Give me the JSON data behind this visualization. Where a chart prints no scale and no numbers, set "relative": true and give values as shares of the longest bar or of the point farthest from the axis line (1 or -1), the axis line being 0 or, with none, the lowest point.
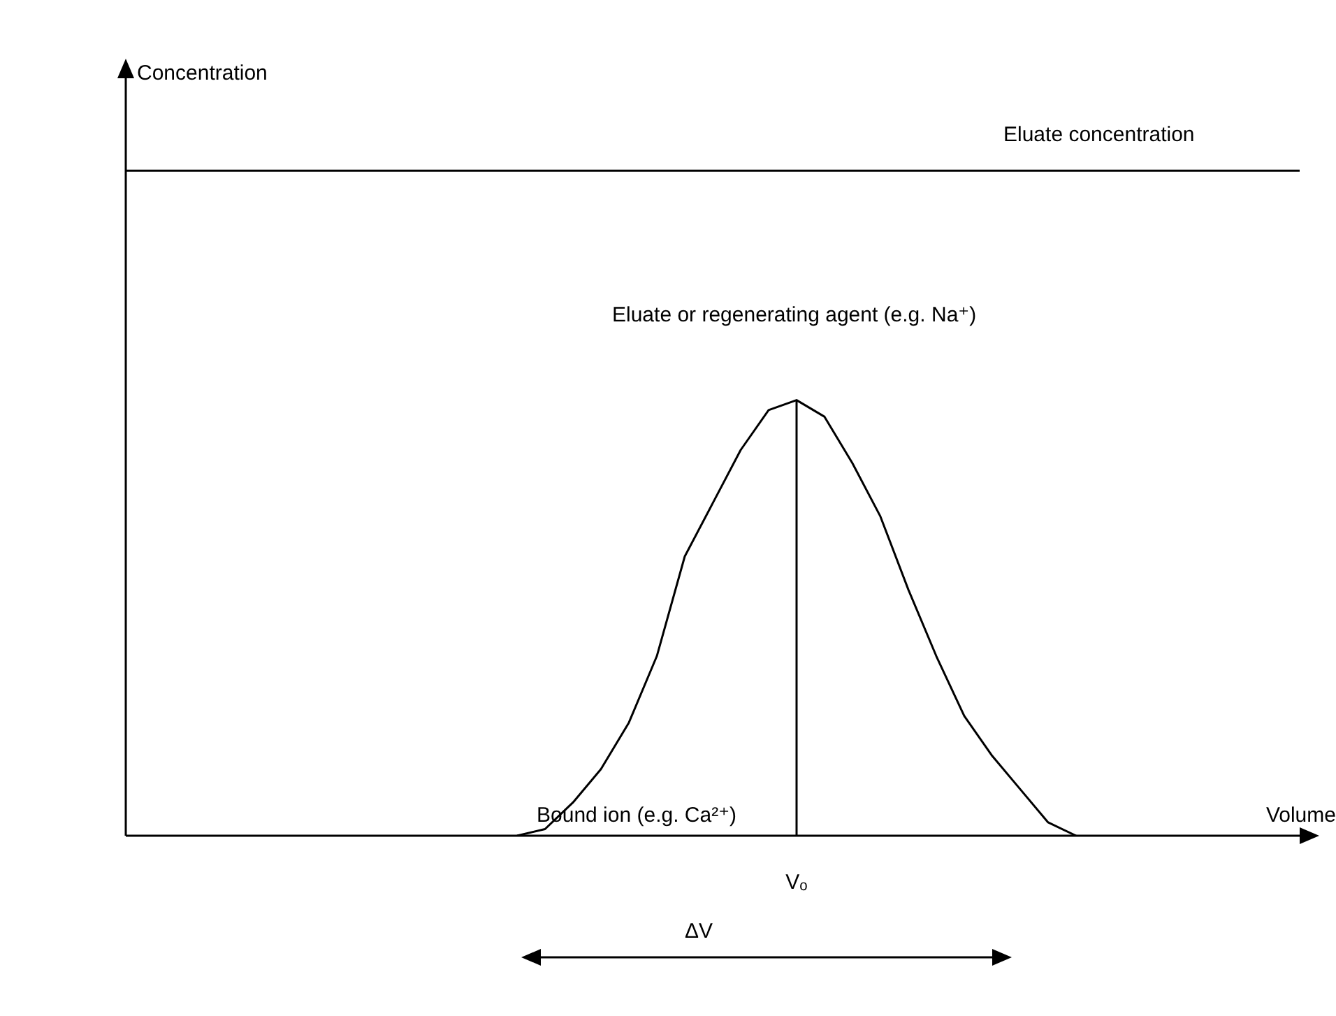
{
  "chart_data": {
    "type": "line",
    "relative": true,
    "xlabel": "Volume",
    "ylabel": "Concentration",
    "categories": [
      null,
      null,
      null,
      null,
      null,
      null,
      null,
      null,
      null,
      null,
      null,
      null,
      null,
      null,
      null,
      null,
      null,
      null,
      null,
      null,
      null,
      null,
      null,
      null,
      null,
      null,
      null,
      null,
      null,
      null,
      null,
      null,
      null,
      null,
      null,
      null,
      null,
      null,
      null,
      null,
      null,
      null,
      null
    ],
    "series": [
      {
        "name": "Eluate concentration",
        "color": "#000000",
        "values": [
          1,
          1,
          1,
          1,
          1,
          1,
          1,
          1,
          1,
          1,
          1,
          1,
          1,
          1,
          1,
          1,
          1,
          1,
          1,
          1,
          1,
          1,
          1,
          1,
          1,
          1,
          1,
          1,
          1,
          1,
          1,
          1,
          1,
          1,
          1,
          1,
          1,
          1,
          1,
          1,
          1,
          1,
          1
        ]
      },
      {
        "name": "Bound ion (e.g. Ca²⁺)",
        "color": "#000000",
        "values": [
          null,
          null,
          null,
          null,
          null,
          null,
          null,
          null,
          null,
          null,
          null,
          null,
          null,
          null,
          0,
          0.01,
          0.05,
          0.1,
          0.17,
          0.27,
          0.42,
          0.5,
          0.58,
          0.64,
          0.655,
          0.63,
          0.56,
          0.48,
          0.37,
          0.27,
          0.18,
          0.12,
          0.07,
          0.02,
          0,
          null,
          null,
          null,
          null,
          null,
          null,
          null,
          null
        ]
      }
    ],
    "ref_lines": [
      {
        "axis": "x",
        "label": "Vₒ",
        "color": "#000000"
      }
    ],
    "annotations": [
      "Eluate or regenerating agent (e.g. Na⁺)",
      "ΔV"
    ],
    "grid": false,
    "legend": false,
    "marker": "none",
    "line_style": "solid"
  }
}
